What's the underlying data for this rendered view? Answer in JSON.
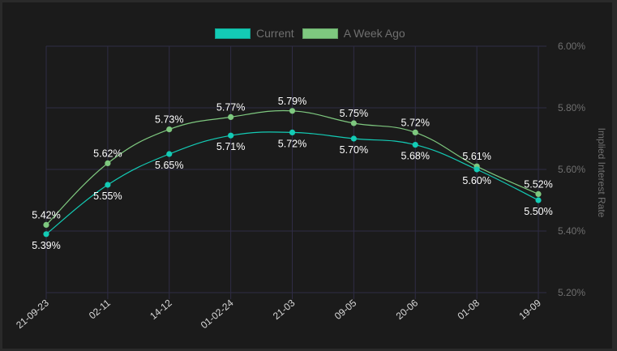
{
  "chart_data": {
    "type": "line",
    "categories": [
      "21-09-23",
      "02-11",
      "14-12",
      "01-02-24",
      "21-03",
      "09-05",
      "20-06",
      "01-08",
      "19-09"
    ],
    "series": [
      {
        "name": "Current",
        "color": "#13cbb5",
        "values": [
          5.39,
          5.55,
          5.65,
          5.71,
          5.72,
          5.7,
          5.68,
          5.6,
          5.5
        ]
      },
      {
        "name": "A Week Ago",
        "color": "#7ec87f",
        "values": [
          5.42,
          5.62,
          5.73,
          5.77,
          5.79,
          5.75,
          5.72,
          5.61,
          5.52
        ]
      }
    ],
    "ylabel": "Implied Interest Rate",
    "ylim": [
      5.2,
      6.0
    ],
    "yticks": [
      "5.20%",
      "5.40%",
      "5.60%",
      "5.80%",
      "6.00%"
    ],
    "y_axis_position": "right",
    "legend": "top",
    "grid": true,
    "data_labels": true,
    "smooth": true
  }
}
